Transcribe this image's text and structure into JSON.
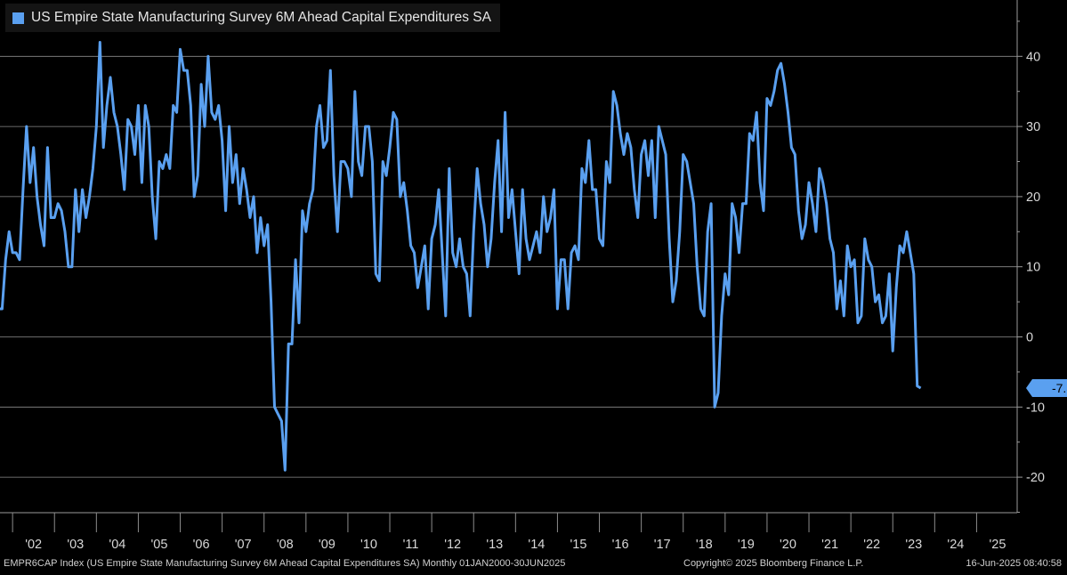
{
  "chart_data": {
    "type": "line",
    "title": "US Empire State Manufacturing Survey 6M Ahead Capital Expenditures SA",
    "frequency": "Monthly",
    "x_range": [
      "2000-01",
      "2025-06"
    ],
    "ylim": [
      -25,
      45
    ],
    "y_ticks": [
      "40",
      "30",
      "20",
      "10",
      "0",
      "-10",
      "-20"
    ],
    "x_ticks": [
      "'02",
      "'03",
      "'04",
      "'05",
      "'06",
      "'07",
      "'08",
      "'09",
      "'10",
      "'11",
      "'12",
      "'13",
      "'14",
      "'15",
      "'16",
      "'17",
      "'18",
      "'19",
      "'20",
      "'21",
      "'22",
      "'23",
      "'24",
      "'25"
    ],
    "grid": true,
    "legend_position": "top-left",
    "last_value": -7.3,
    "last_value_label": "-7.3",
    "series": [
      {
        "color": "#5aa0f0",
        "points": [
          [
            "2001-09",
            4
          ],
          [
            "2001-10",
            4
          ],
          [
            "2001-11",
            11
          ],
          [
            "2001-12",
            15
          ],
          [
            "2002-01",
            12
          ],
          [
            "2002-02",
            12
          ],
          [
            "2002-03",
            11
          ],
          [
            "2002-04",
            21
          ],
          [
            "2002-05",
            30
          ],
          [
            "2002-06",
            22
          ],
          [
            "2002-07",
            27
          ],
          [
            "2002-08",
            20
          ],
          [
            "2002-09",
            16
          ],
          [
            "2002-10",
            13
          ],
          [
            "2002-11",
            27
          ],
          [
            "2002-12",
            17
          ],
          [
            "2003-01",
            17
          ],
          [
            "2003-02",
            19
          ],
          [
            "2003-03",
            18
          ],
          [
            "2003-04",
            15
          ],
          [
            "2003-05",
            10
          ],
          [
            "2003-06",
            10
          ],
          [
            "2003-07",
            21
          ],
          [
            "2003-08",
            15
          ],
          [
            "2003-09",
            21
          ],
          [
            "2003-10",
            17
          ],
          [
            "2003-11",
            20
          ],
          [
            "2003-12",
            24
          ],
          [
            "2004-01",
            30
          ],
          [
            "2004-02",
            42
          ],
          [
            "2004-03",
            27
          ],
          [
            "2004-04",
            33
          ],
          [
            "2004-05",
            37
          ],
          [
            "2004-06",
            32
          ],
          [
            "2004-07",
            30
          ],
          [
            "2004-08",
            26
          ],
          [
            "2004-09",
            21
          ],
          [
            "2004-10",
            31
          ],
          [
            "2004-11",
            30
          ],
          [
            "2004-12",
            26
          ],
          [
            "2005-01",
            33
          ],
          [
            "2005-02",
            22
          ],
          [
            "2005-03",
            33
          ],
          [
            "2005-04",
            30
          ],
          [
            "2005-05",
            20
          ],
          [
            "2005-06",
            14
          ],
          [
            "2005-07",
            25
          ],
          [
            "2005-08",
            24
          ],
          [
            "2005-09",
            26
          ],
          [
            "2005-10",
            24
          ],
          [
            "2005-11",
            33
          ],
          [
            "2005-12",
            32
          ],
          [
            "2006-01",
            41
          ],
          [
            "2006-02",
            38
          ],
          [
            "2006-03",
            38
          ],
          [
            "2006-04",
            33
          ],
          [
            "2006-05",
            20
          ],
          [
            "2006-06",
            23
          ],
          [
            "2006-07",
            36
          ],
          [
            "2006-08",
            30
          ],
          [
            "2006-09",
            40
          ],
          [
            "2006-10",
            32
          ],
          [
            "2006-11",
            31
          ],
          [
            "2006-12",
            33
          ],
          [
            "2007-01",
            28
          ],
          [
            "2007-02",
            18
          ],
          [
            "2007-03",
            30
          ],
          [
            "2007-04",
            22
          ],
          [
            "2007-05",
            26
          ],
          [
            "2007-06",
            19
          ],
          [
            "2007-07",
            24
          ],
          [
            "2007-08",
            21
          ],
          [
            "2007-09",
            17
          ],
          [
            "2007-10",
            20
          ],
          [
            "2007-11",
            12
          ],
          [
            "2007-12",
            17
          ],
          [
            "2008-01",
            13
          ],
          [
            "2008-02",
            16
          ],
          [
            "2008-03",
            5
          ],
          [
            "2008-04",
            -10
          ],
          [
            "2008-05",
            -11
          ],
          [
            "2008-06",
            -12
          ],
          [
            "2008-07",
            -19
          ],
          [
            "2008-08",
            -1
          ],
          [
            "2008-09",
            -1
          ],
          [
            "2008-10",
            11
          ],
          [
            "2008-11",
            2
          ],
          [
            "2008-12",
            18
          ],
          [
            "2009-01",
            15
          ],
          [
            "2009-02",
            19
          ],
          [
            "2009-03",
            21
          ],
          [
            "2009-04",
            30
          ],
          [
            "2009-05",
            33
          ],
          [
            "2009-06",
            27
          ],
          [
            "2009-07",
            28
          ],
          [
            "2009-08",
            38
          ],
          [
            "2009-09",
            23
          ],
          [
            "2009-10",
            15
          ],
          [
            "2009-11",
            25
          ],
          [
            "2009-12",
            25
          ],
          [
            "2010-01",
            24
          ],
          [
            "2010-02",
            20
          ],
          [
            "2010-03",
            35
          ],
          [
            "2010-04",
            25
          ],
          [
            "2010-05",
            23
          ],
          [
            "2010-06",
            30
          ],
          [
            "2010-07",
            30
          ],
          [
            "2010-08",
            25
          ],
          [
            "2010-09",
            9
          ],
          [
            "2010-10",
            8
          ],
          [
            "2010-11",
            25
          ],
          [
            "2010-12",
            23
          ],
          [
            "2011-01",
            27
          ],
          [
            "2011-02",
            32
          ],
          [
            "2011-03",
            31
          ],
          [
            "2011-04",
            20
          ],
          [
            "2011-05",
            22
          ],
          [
            "2011-06",
            18
          ],
          [
            "2011-07",
            13
          ],
          [
            "2011-08",
            12
          ],
          [
            "2011-09",
            7
          ],
          [
            "2011-10",
            10
          ],
          [
            "2011-11",
            13
          ],
          [
            "2011-12",
            4
          ],
          [
            "2012-01",
            14
          ],
          [
            "2012-02",
            16
          ],
          [
            "2012-03",
            21
          ],
          [
            "2012-04",
            12
          ],
          [
            "2012-05",
            3
          ],
          [
            "2012-06",
            24
          ],
          [
            "2012-07",
            12
          ],
          [
            "2012-08",
            10
          ],
          [
            "2012-09",
            14
          ],
          [
            "2012-10",
            10
          ],
          [
            "2012-11",
            9
          ],
          [
            "2012-12",
            3
          ],
          [
            "2013-01",
            15
          ],
          [
            "2013-02",
            24
          ],
          [
            "2013-03",
            19
          ],
          [
            "2013-04",
            16
          ],
          [
            "2013-05",
            10
          ],
          [
            "2013-06",
            14
          ],
          [
            "2013-07",
            22
          ],
          [
            "2013-08",
            28
          ],
          [
            "2013-09",
            15
          ],
          [
            "2013-10",
            32
          ],
          [
            "2013-11",
            17
          ],
          [
            "2013-12",
            21
          ],
          [
            "2014-01",
            15
          ],
          [
            "2014-02",
            9
          ],
          [
            "2014-03",
            21
          ],
          [
            "2014-04",
            14
          ],
          [
            "2014-05",
            11
          ],
          [
            "2014-06",
            13
          ],
          [
            "2014-07",
            15
          ],
          [
            "2014-08",
            12
          ],
          [
            "2014-09",
            20
          ],
          [
            "2014-10",
            15
          ],
          [
            "2014-11",
            17
          ],
          [
            "2014-12",
            21
          ],
          [
            "2015-01",
            4
          ],
          [
            "2015-02",
            11
          ],
          [
            "2015-03",
            11
          ],
          [
            "2015-04",
            4
          ],
          [
            "2015-05",
            12
          ],
          [
            "2015-06",
            13
          ],
          [
            "2015-07",
            11
          ],
          [
            "2015-08",
            24
          ],
          [
            "2015-09",
            22
          ],
          [
            "2015-10",
            28
          ],
          [
            "2015-11",
            21
          ],
          [
            "2015-12",
            21
          ],
          [
            "2016-01",
            14
          ],
          [
            "2016-02",
            13
          ],
          [
            "2016-03",
            25
          ],
          [
            "2016-04",
            22
          ],
          [
            "2016-05",
            35
          ],
          [
            "2016-06",
            33
          ],
          [
            "2016-07",
            29
          ],
          [
            "2016-08",
            26
          ],
          [
            "2016-09",
            29
          ],
          [
            "2016-10",
            27
          ],
          [
            "2016-11",
            21
          ],
          [
            "2016-12",
            17
          ],
          [
            "2017-01",
            26
          ],
          [
            "2017-02",
            28
          ],
          [
            "2017-03",
            23
          ],
          [
            "2017-04",
            28
          ],
          [
            "2017-05",
            17
          ],
          [
            "2017-06",
            30
          ],
          [
            "2017-07",
            28
          ],
          [
            "2017-08",
            26
          ],
          [
            "2017-09",
            14
          ],
          [
            "2017-10",
            5
          ],
          [
            "2017-11",
            8
          ],
          [
            "2017-12",
            15
          ],
          [
            "2018-01",
            26
          ],
          [
            "2018-02",
            25
          ],
          [
            "2018-03",
            22
          ],
          [
            "2018-04",
            19
          ],
          [
            "2018-05",
            10
          ],
          [
            "2018-06",
            4
          ],
          [
            "2018-07",
            3
          ],
          [
            "2018-08",
            15
          ],
          [
            "2018-09",
            19
          ],
          [
            "2018-10",
            -10
          ],
          [
            "2018-11",
            -8
          ],
          [
            "2018-12",
            3
          ],
          [
            "2019-01",
            9
          ],
          [
            "2019-02",
            6
          ],
          [
            "2019-03",
            19
          ],
          [
            "2019-04",
            17
          ],
          [
            "2019-05",
            12
          ],
          [
            "2019-06",
            19
          ],
          [
            "2019-07",
            19
          ],
          [
            "2019-08",
            29
          ],
          [
            "2019-09",
            28
          ],
          [
            "2019-10",
            32
          ],
          [
            "2019-11",
            22
          ],
          [
            "2019-12",
            18
          ],
          [
            "2020-01",
            34
          ],
          [
            "2020-02",
            33
          ],
          [
            "2020-03",
            35
          ],
          [
            "2020-04",
            38
          ],
          [
            "2020-05",
            39
          ],
          [
            "2020-06",
            36
          ],
          [
            "2020-07",
            32
          ],
          [
            "2020-08",
            27
          ],
          [
            "2020-09",
            26
          ],
          [
            "2020-10",
            18
          ],
          [
            "2020-11",
            14
          ],
          [
            "2020-12",
            16
          ],
          [
            "2021-01",
            22
          ],
          [
            "2021-02",
            19
          ],
          [
            "2021-03",
            15
          ],
          [
            "2021-04",
            24
          ],
          [
            "2021-05",
            22
          ],
          [
            "2021-06",
            19
          ],
          [
            "2021-07",
            14
          ],
          [
            "2021-08",
            12
          ],
          [
            "2021-09",
            4
          ],
          [
            "2021-10",
            8
          ],
          [
            "2021-11",
            3
          ],
          [
            "2021-12",
            13
          ],
          [
            "2022-01",
            10
          ],
          [
            "2022-02",
            11
          ],
          [
            "2022-03",
            2
          ],
          [
            "2022-04",
            3
          ],
          [
            "2022-05",
            14
          ],
          [
            "2022-06",
            11
          ],
          [
            "2022-07",
            10
          ],
          [
            "2022-08",
            5
          ],
          [
            "2022-09",
            6
          ],
          [
            "2022-10",
            2
          ],
          [
            "2022-11",
            3
          ],
          [
            "2022-12",
            9
          ],
          [
            "2023-01",
            -2
          ],
          [
            "2023-02",
            7
          ],
          [
            "2023-03",
            13
          ],
          [
            "2023-04",
            12
          ],
          [
            "2023-05",
            15
          ],
          [
            "2023-06",
            12
          ],
          [
            "2023-07",
            9
          ],
          [
            "2023-08",
            -7
          ],
          [
            "2023-09",
            -7.3
          ]
        ]
      }
    ]
  },
  "footer": {
    "source": "EMPR6CAP Index (US Empire State Manufacturing Survey 6M Ahead Capital Expenditures SA)  Monthly 01JAN2000-30JUN2025",
    "copyright": "Copyright© 2025 Bloomberg Finance L.P.",
    "timestamp": "16-Jun-2025 08:40:58"
  }
}
